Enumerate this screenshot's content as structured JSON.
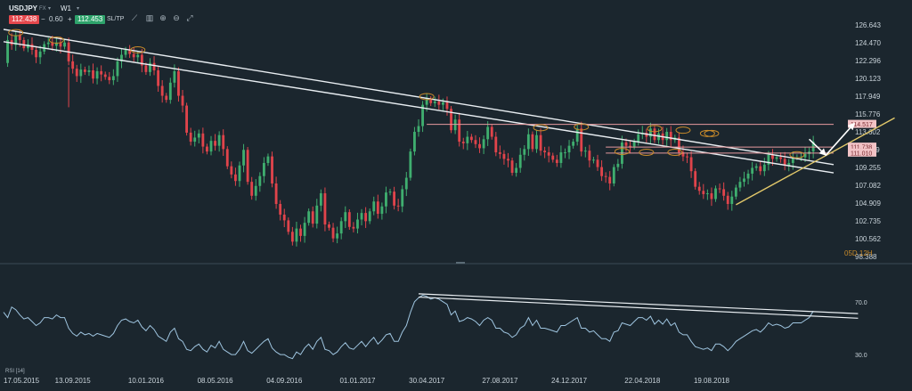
{
  "toolbar": {
    "symbol": "USDJPY",
    "instrument_type": "FX",
    "timeframe": "W1",
    "sell_price": "112.438",
    "lot_minus": "−",
    "lot_size": "0.60",
    "lot_plus": "+",
    "buy_price": "112.453",
    "sltp_label": "SL/TP",
    "icons": [
      "line-tool-icon",
      "chart-type-icon",
      "zoom-in-icon",
      "zoom-out-icon",
      "fullscreen-icon"
    ]
  },
  "period_label": "05D 12H",
  "rsi_label": "RSI [14]",
  "colors": {
    "background": "#1b262e",
    "bull": "#3fae6f",
    "bear": "#e0444b",
    "trendline": "#e9eef2",
    "resistance": "#e79a9e",
    "support": "#e2c86a",
    "rsi_line": "#9fc5e0",
    "marker": "#c88a2a"
  },
  "chart_data": [
    {
      "type": "candlestick",
      "title": "",
      "y_ticks": [
        "126.643",
        "124.470",
        "122.296",
        "120.123",
        "117.949",
        "115.776",
        "113.602",
        "111.429",
        "109.255",
        "107.082",
        "104.909",
        "102.735",
        "100.562",
        "98.388"
      ],
      "x_ticks": [
        "17.05.2015",
        "13.09.2015",
        "10.01.2016",
        "08.05.2016",
        "04.09.2016",
        "01.01.2017",
        "30.04.2017",
        "27.08.2017",
        "24.12.2017",
        "22.04.2018",
        "19.08.2018"
      ],
      "ylim": [
        98.388,
        126.643
      ],
      "grid": false,
      "close_path": [
        [
          0,
          122.0
        ],
        [
          1,
          124.8
        ],
        [
          2,
          124.2
        ],
        [
          3,
          125.4
        ],
        [
          4,
          124.8
        ],
        [
          5,
          123.8
        ],
        [
          6,
          124.3
        ],
        [
          7,
          123.6
        ],
        [
          8,
          122.7
        ],
        [
          9,
          123.4
        ],
        [
          10,
          124.3
        ],
        [
          11,
          124.5
        ],
        [
          12,
          124.1
        ],
        [
          13,
          124.5
        ],
        [
          14,
          124.0
        ],
        [
          15,
          124.5
        ],
        [
          16,
          122.2
        ],
        [
          17,
          121.3
        ],
        [
          18,
          120.4
        ],
        [
          19,
          121.2
        ],
        [
          20,
          120.9
        ],
        [
          21,
          121.1
        ],
        [
          22,
          120.1
        ],
        [
          23,
          121.0
        ],
        [
          24,
          120.6
        ],
        [
          25,
          120.3
        ],
        [
          26,
          119.9
        ],
        [
          27,
          120.4
        ],
        [
          28,
          122.2
        ],
        [
          29,
          123.0
        ],
        [
          30,
          123.6
        ],
        [
          31,
          123.1
        ],
        [
          32,
          122.7
        ],
        [
          33,
          123.0
        ],
        [
          34,
          121.7
        ],
        [
          35,
          120.9
        ],
        [
          36,
          122.0
        ],
        [
          37,
          121.1
        ],
        [
          38,
          119.2
        ],
        [
          39,
          118.0
        ],
        [
          40,
          117.5
        ],
        [
          41,
          119.6
        ],
        [
          42,
          121.0
        ],
        [
          43,
          118.0
        ],
        [
          44,
          116.8
        ],
        [
          45,
          113.5
        ],
        [
          46,
          112.4
        ],
        [
          47,
          112.9
        ],
        [
          48,
          113.4
        ],
        [
          49,
          111.8
        ],
        [
          50,
          111.2
        ],
        [
          51,
          112.5
        ],
        [
          52,
          111.9
        ],
        [
          53,
          113.2
        ],
        [
          54,
          111.5
        ],
        [
          55,
          109.4
        ],
        [
          56,
          108.4
        ],
        [
          57,
          107.6
        ],
        [
          58,
          109.5
        ],
        [
          59,
          111.4
        ],
        [
          60,
          107.5
        ],
        [
          61,
          105.8
        ],
        [
          62,
          107.0
        ],
        [
          63,
          108.2
        ],
        [
          64,
          109.8
        ],
        [
          65,
          110.6
        ],
        [
          66,
          107.3
        ],
        [
          67,
          104.8
        ],
        [
          68,
          103.5
        ],
        [
          69,
          102.8
        ],
        [
          70,
          101.4
        ],
        [
          71,
          100.2
        ],
        [
          72,
          101.8
        ],
        [
          73,
          100.9
        ],
        [
          74,
          102.5
        ],
        [
          75,
          103.9
        ],
        [
          76,
          102.4
        ],
        [
          77,
          104.6
        ],
        [
          78,
          106.1
        ],
        [
          79,
          102.3
        ],
        [
          80,
          101.9
        ],
        [
          81,
          100.6
        ],
        [
          82,
          101.2
        ],
        [
          83,
          102.7
        ],
        [
          84,
          103.8
        ],
        [
          85,
          102.0
        ],
        [
          86,
          101.8
        ],
        [
          87,
          102.9
        ],
        [
          88,
          103.7
        ],
        [
          89,
          102.7
        ],
        [
          90,
          103.9
        ],
        [
          91,
          105.1
        ],
        [
          92,
          103.6
        ],
        [
          93,
          104.5
        ],
        [
          94,
          106.2
        ],
        [
          95,
          106.3
        ],
        [
          96,
          104.6
        ],
        [
          97,
          104.5
        ],
        [
          98,
          106.6
        ],
        [
          99,
          108.0
        ],
        [
          100,
          111.2
        ],
        [
          101,
          113.6
        ],
        [
          102,
          114.3
        ],
        [
          103,
          116.9
        ],
        [
          104,
          117.6
        ],
        [
          105,
          117.1
        ],
        [
          106,
          117.3
        ],
        [
          107,
          116.9
        ],
        [
          108,
          117.2
        ],
        [
          109,
          116.4
        ],
        [
          110,
          113.8
        ],
        [
          111,
          115.1
        ],
        [
          112,
          112.4
        ],
        [
          113,
          112.2
        ],
        [
          114,
          113.0
        ],
        [
          115,
          112.6
        ],
        [
          116,
          112.1
        ],
        [
          117,
          111.6
        ],
        [
          118,
          112.7
        ],
        [
          119,
          114.2
        ],
        [
          120,
          113.0
        ],
        [
          121,
          111.1
        ],
        [
          122,
          110.9
        ],
        [
          123,
          110.3
        ],
        [
          124,
          110.1
        ],
        [
          125,
          108.6
        ],
        [
          126,
          109.2
        ],
        [
          127,
          110.8
        ],
        [
          128,
          111.5
        ],
        [
          129,
          113.3
        ],
        [
          130,
          111.5
        ],
        [
          131,
          113.2
        ],
        [
          132,
          111.3
        ],
        [
          133,
          111.1
        ],
        [
          134,
          110.7
        ],
        [
          135,
          110.2
        ],
        [
          136,
          109.8
        ],
        [
          137,
          111.1
        ],
        [
          138,
          111.1
        ],
        [
          139,
          111.9
        ],
        [
          140,
          112.4
        ],
        [
          141,
          114.0
        ],
        [
          142,
          111.2
        ],
        [
          143,
          111.3
        ],
        [
          144,
          110.1
        ],
        [
          145,
          110.2
        ],
        [
          146,
          109.3
        ],
        [
          147,
          108.2
        ],
        [
          148,
          108.1
        ],
        [
          149,
          107.3
        ],
        [
          150,
          109.3
        ],
        [
          151,
          109.7
        ],
        [
          152,
          112.3
        ],
        [
          153,
          111.9
        ],
        [
          154,
          111.8
        ],
        [
          155,
          112.4
        ],
        [
          156,
          113.3
        ],
        [
          157,
          113.5
        ],
        [
          158,
          113.0
        ],
        [
          159,
          114.0
        ],
        [
          160,
          112.6
        ],
        [
          161,
          113.4
        ],
        [
          162,
          112.6
        ],
        [
          163,
          113.6
        ],
        [
          164,
          112.6
        ],
        [
          165,
          112.9
        ],
        [
          166,
          111.1
        ],
        [
          167,
          110.6
        ],
        [
          168,
          110.5
        ],
        [
          169,
          108.8
        ],
        [
          170,
          106.9
        ],
        [
          171,
          106.4
        ],
        [
          172,
          106.0
        ],
        [
          173,
          106.1
        ],
        [
          174,
          105.4
        ],
        [
          175,
          106.7
        ],
        [
          176,
          106.6
        ],
        [
          177,
          105.8
        ],
        [
          178,
          104.8
        ],
        [
          179,
          105.7
        ],
        [
          180,
          106.8
        ],
        [
          181,
          107.5
        ],
        [
          182,
          107.9
        ],
        [
          183,
          108.5
        ],
        [
          184,
          109.2
        ],
        [
          185,
          109.4
        ],
        [
          186,
          108.8
        ],
        [
          187,
          109.6
        ],
        [
          188,
          110.8
        ],
        [
          189,
          110.3
        ],
        [
          190,
          110.5
        ],
        [
          191,
          110.3
        ],
        [
          192,
          109.5
        ],
        [
          193,
          109.8
        ],
        [
          194,
          110.5
        ],
        [
          195,
          110.5
        ],
        [
          196,
          110.5
        ],
        [
          197,
          110.9
        ],
        [
          198,
          111.2
        ],
        [
          199,
          112.4
        ]
      ],
      "x_span": [
        0,
        204
      ],
      "trendlines": [
        {
          "name": "upper-channel-line",
          "color": "trendline",
          "from": [
            0,
            126.1
          ],
          "to": [
            204,
            109.6
          ]
        },
        {
          "name": "lower-channel-line",
          "color": "trendline",
          "from": [
            0,
            124.6
          ],
          "to": [
            204,
            108.6
          ]
        },
        {
          "name": "resistance-114-517",
          "color": "resistance",
          "level": 114.517,
          "from_x": 104,
          "to_x": 204
        },
        {
          "name": "resistance-111-738",
          "color": "resistance",
          "level": 111.738,
          "from_x": 148,
          "to_x": 204
        },
        {
          "name": "resistance-111-010",
          "color": "resistance",
          "level": 111.01,
          "from_x": 148,
          "to_x": 204
        },
        {
          "name": "rising-support-line",
          "color": "support",
          "from": [
            180,
            104.7
          ],
          "to": [
            219,
            115.3
          ]
        }
      ],
      "level_labels": [
        "114.517",
        "111.738",
        "111.010"
      ],
      "projection_arrows": [
        {
          "name": "bullish-arrow",
          "from": [
            202,
            110.7
          ],
          "to": [
            209,
            114.6
          ]
        },
        {
          "name": "bearish-arrow",
          "from": [
            198,
            112.7
          ],
          "to": [
            202,
            110.8
          ]
        }
      ],
      "touch_markers": [
        [
          3,
          125.7
        ],
        [
          13,
          124.8
        ],
        [
          33,
          123.6
        ],
        [
          104,
          117.9
        ],
        [
          132,
          114.1
        ],
        [
          142,
          114.2
        ],
        [
          160,
          114.0
        ],
        [
          167,
          113.8
        ],
        [
          173,
          113.4
        ],
        [
          152,
          111.2
        ],
        [
          158,
          111.1
        ],
        [
          165,
          111.1
        ],
        [
          195,
          110.8
        ],
        [
          174,
          113.4
        ]
      ]
    },
    {
      "type": "line",
      "title": "RSI [14]",
      "y_ticks": [
        "70.0",
        "30.0"
      ],
      "ylim": [
        22,
        84
      ],
      "grid": false,
      "values": [
        62,
        58,
        66,
        64,
        60,
        57,
        58,
        55,
        52,
        54,
        58,
        58,
        57,
        60,
        58,
        58,
        50,
        46,
        44,
        47,
        45,
        46,
        44,
        46,
        45,
        44,
        43,
        46,
        52,
        56,
        57,
        55,
        54,
        56,
        51,
        48,
        52,
        49,
        44,
        42,
        40,
        47,
        50,
        42,
        40,
        34,
        33,
        36,
        38,
        34,
        32,
        37,
        35,
        40,
        34,
        32,
        30,
        30,
        34,
        40,
        33,
        31,
        34,
        37,
        40,
        42,
        35,
        32,
        30,
        30,
        28,
        27,
        32,
        30,
        35,
        38,
        34,
        40,
        43,
        34,
        33,
        30,
        32,
        36,
        39,
        35,
        34,
        37,
        40,
        36,
        40,
        43,
        38,
        41,
        45,
        46,
        40,
        40,
        47,
        52,
        62,
        70,
        73,
        75,
        74,
        72,
        73,
        72,
        70,
        68,
        60,
        63,
        55,
        56,
        58,
        57,
        55,
        52,
        56,
        58,
        56,
        50,
        50,
        47,
        46,
        43,
        45,
        50,
        52,
        58,
        52,
        56,
        50,
        50,
        49,
        48,
        47,
        52,
        52,
        54,
        56,
        58,
        50,
        50,
        47,
        48,
        45,
        42,
        42,
        40,
        47,
        48,
        54,
        53,
        52,
        55,
        58,
        58,
        56,
        59,
        53,
        56,
        53,
        57,
        52,
        54,
        47,
        45,
        45,
        40,
        36,
        35,
        34,
        35,
        33,
        38,
        38,
        36,
        33,
        36,
        40,
        42,
        44,
        46,
        48,
        49,
        47,
        50,
        54,
        52,
        53,
        52,
        50,
        51,
        54,
        54,
        54,
        56,
        58,
        63
      ],
      "trendlines": [
        {
          "name": "rsi-upper-trendline",
          "from": [
            102,
            76
          ],
          "to": [
            210,
            61
          ]
        },
        {
          "name": "rsi-lower-trendline",
          "from": [
            102,
            73.5
          ],
          "to": [
            210,
            57.5
          ]
        }
      ]
    }
  ]
}
